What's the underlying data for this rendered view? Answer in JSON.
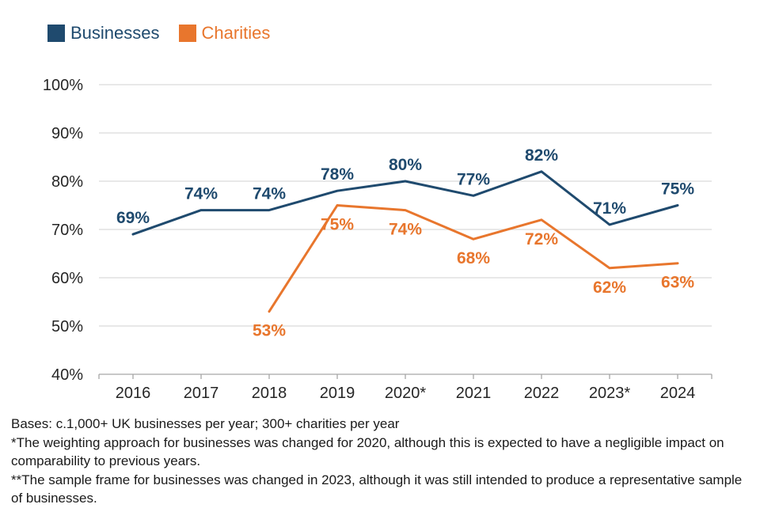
{
  "chart_data": {
    "type": "line",
    "categories": [
      "2016",
      "2017",
      "2018",
      "2019",
      "2020*",
      "2021",
      "2022",
      "2023*",
      "2024"
    ],
    "series": [
      {
        "name": "Businesses",
        "color": "#1F4A6E",
        "values": [
          69,
          74,
          74,
          78,
          80,
          77,
          82,
          71,
          75
        ]
      },
      {
        "name": "Charities",
        "color": "#E8762D",
        "values": [
          null,
          null,
          53,
          75,
          74,
          68,
          72,
          62,
          63
        ]
      }
    ],
    "title": "",
    "xlabel": "",
    "ylabel": "",
    "ylim": [
      40,
      100
    ],
    "yticks": [
      40,
      50,
      60,
      70,
      80,
      90,
      100
    ],
    "ytick_suffix": "%",
    "grid": true,
    "data_labels": true,
    "legend_position": "top-left",
    "colors": {
      "gridline": "#d9d9d9",
      "axis": "#a6a6a6",
      "tick_text": "#262626"
    }
  },
  "footnotes": {
    "line1": "Bases: c.1,000+ UK businesses per year; 300+ charities per year",
    "line2": "*The weighting approach for businesses was changed for 2020, although this is expected to have a negligible impact on comparability to previous years.",
    "line3": "**The sample frame for businesses was changed in 2023, although it was still intended to produce a representative sample of businesses."
  }
}
